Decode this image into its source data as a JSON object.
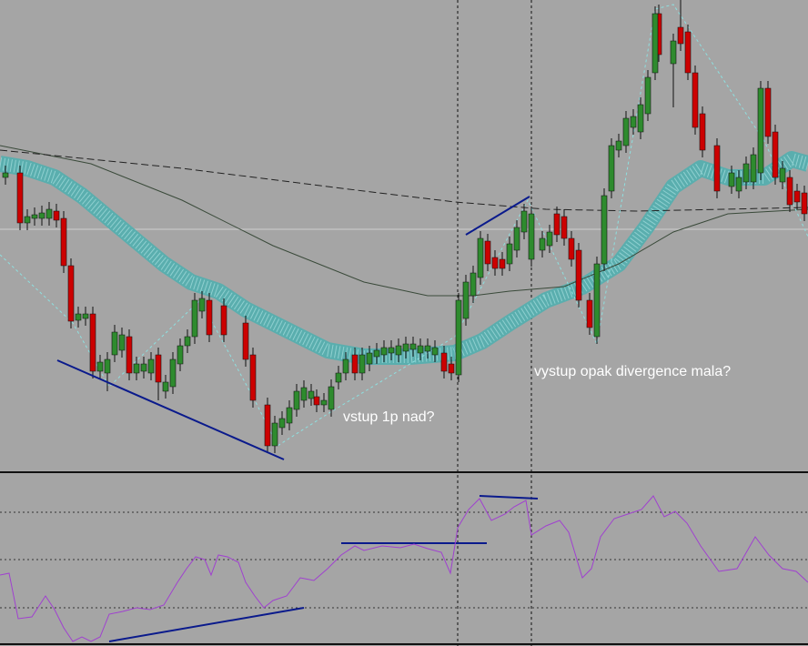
{
  "annotations": [
    "vstup 1p nad?",
    "vystup opak divergence mala?"
  ]
}
